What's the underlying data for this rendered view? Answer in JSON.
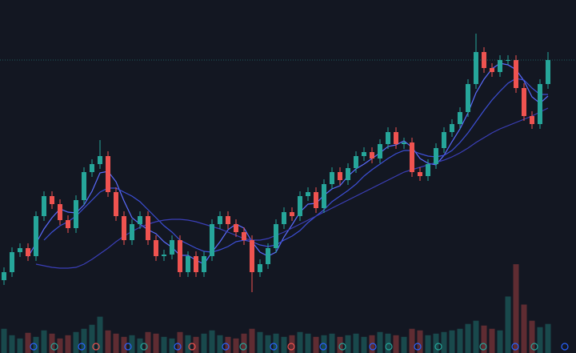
{
  "chart_data": {
    "type": "candlestick",
    "categories": [
      null,
      null,
      null,
      null,
      null,
      null,
      null,
      null,
      null,
      null,
      null,
      null,
      null,
      null,
      null,
      null,
      null,
      null,
      null,
      null,
      null,
      null,
      null,
      null,
      null,
      null,
      null,
      null,
      null,
      null,
      null,
      null,
      null,
      null,
      null,
      null,
      null,
      null,
      null,
      null,
      null,
      null,
      null,
      null,
      null,
      null,
      null,
      null,
      null,
      null,
      null,
      null,
      null,
      null,
      null,
      null,
      null,
      null,
      null,
      null,
      null,
      null,
      null,
      null,
      null,
      null,
      null,
      null,
      null
    ],
    "open": [
      60,
      70,
      95,
      100,
      90,
      140,
      165,
      155,
      135,
      125,
      160,
      195,
      205,
      215,
      170,
      140,
      110,
      130,
      140,
      110,
      90,
      92,
      110,
      70,
      90,
      70,
      90,
      130,
      140,
      130,
      120,
      110,
      70,
      80,
      100,
      130,
      145,
      140,
      165,
      170,
      150,
      180,
      195,
      185,
      200,
      215,
      220,
      212,
      230,
      245,
      230,
      232,
      195,
      190,
      205,
      225,
      245,
      255,
      270,
      305,
      345,
      325,
      320,
      335,
      335,
      300,
      265,
      255,
      305
    ],
    "high": [
      76,
      101,
      106,
      106,
      146,
      171,
      171,
      161,
      141,
      166,
      201,
      211,
      235,
      221,
      176,
      146,
      136,
      146,
      146,
      116,
      98,
      116,
      116,
      96,
      96,
      96,
      136,
      146,
      146,
      136,
      126,
      116,
      86,
      106,
      136,
      151,
      151,
      171,
      176,
      176,
      186,
      201,
      201,
      206,
      221,
      226,
      226,
      236,
      251,
      251,
      238,
      238,
      201,
      211,
      231,
      251,
      261,
      276,
      311,
      368,
      351,
      331,
      341,
      341,
      341,
      306,
      271,
      311,
      345
    ],
    "low": [
      54,
      64,
      89,
      84,
      84,
      134,
      149,
      129,
      119,
      119,
      154,
      189,
      199,
      164,
      134,
      104,
      104,
      124,
      104,
      84,
      84,
      86,
      64,
      64,
      64,
      64,
      84,
      124,
      124,
      114,
      104,
      45,
      64,
      74,
      94,
      124,
      134,
      134,
      159,
      144,
      144,
      174,
      179,
      179,
      194,
      209,
      206,
      206,
      224,
      224,
      224,
      189,
      184,
      184,
      199,
      219,
      239,
      249,
      264,
      299,
      319,
      314,
      314,
      329,
      294,
      259,
      249,
      249,
      299
    ],
    "close": [
      70,
      95,
      100,
      90,
      140,
      165,
      155,
      135,
      125,
      160,
      195,
      205,
      215,
      170,
      140,
      110,
      130,
      140,
      110,
      90,
      92,
      110,
      70,
      90,
      70,
      90,
      130,
      140,
      130,
      120,
      110,
      70,
      80,
      100,
      130,
      145,
      140,
      165,
      170,
      150,
      180,
      195,
      185,
      200,
      215,
      220,
      212,
      230,
      245,
      230,
      232,
      195,
      190,
      205,
      225,
      245,
      255,
      270,
      305,
      345,
      325,
      320,
      335,
      335,
      300,
      265,
      255,
      305,
      335
    ],
    "up_color": "#26a69a",
    "down_color": "#ef5350",
    "ylim": [
      0,
      410
    ],
    "volume": [
      30,
      22,
      18,
      25,
      20,
      28,
      24,
      18,
      22,
      26,
      30,
      35,
      45,
      28,
      24,
      20,
      22,
      18,
      26,
      24,
      20,
      18,
      26,
      22,
      20,
      24,
      28,
      22,
      20,
      18,
      24,
      30,
      26,
      22,
      24,
      20,
      22,
      26,
      24,
      20,
      22,
      24,
      20,
      22,
      24,
      20,
      22,
      26,
      24,
      22,
      20,
      30,
      28,
      22,
      24,
      26,
      28,
      30,
      36,
      40,
      34,
      30,
      28,
      70,
      110,
      60,
      40,
      32,
      36
    ],
    "y2lim": [
      0,
      120
    ],
    "series": [
      {
        "color": "#5b6cff",
        "values": [
          null,
          null,
          null,
          89,
          106,
          124,
          138,
          149,
          145,
          144,
          154,
          171,
          194,
          196,
          183,
          159,
          138,
          130,
          123,
          118,
          108,
          101,
          91,
          91,
          85,
          80,
          95,
          108,
          123,
          130,
          125,
          108,
          95,
          90,
          95,
          114,
          129,
          145,
          155,
          156,
          166,
          174,
          178,
          190,
          199,
          205,
          212,
          219,
          227,
          229,
          234,
          226,
          212,
          206,
          204,
          216,
          233,
          249,
          269,
          294,
          311,
          324,
          331,
          329,
          323,
          309,
          289,
          281,
          290
        ]
      },
      {
        "color": "#3d4fd6",
        "values": [
          null,
          null,
          null,
          null,
          null,
          110,
          120,
          128,
          133,
          140,
          150,
          160,
          170,
          175,
          175,
          170,
          165,
          158,
          148,
          138,
          128,
          120,
          110,
          105,
          100,
          96,
          95,
          98,
          102,
          108,
          110,
          108,
          104,
          102,
          104,
          110,
          115,
          122,
          132,
          140,
          148,
          158,
          165,
          172,
          180,
          190,
          198,
          205,
          212,
          218,
          222,
          222,
          218,
          215,
          214,
          216,
          222,
          232,
          244,
          258,
          272,
          285,
          296,
          306,
          312,
          310,
          300,
          292,
          292
        ]
      },
      {
        "color": "#3b3fb8",
        "values": [
          null,
          null,
          null,
          null,
          80,
          78,
          76,
          75,
          75,
          76,
          80,
          86,
          93,
          100,
          108,
          115,
          121,
          126,
          130,
          133,
          135,
          136,
          136,
          135,
          133,
          130,
          127,
          124,
          120,
          116,
          112,
          110,
          110,
          112,
          116,
          120,
          125,
          130,
          135,
          140,
          145,
          150,
          155,
          160,
          165,
          170,
          175,
          180,
          185,
          190,
          195,
          198,
          201,
          204,
          207,
          210,
          214,
          219,
          225,
          232,
          238,
          244,
          249,
          253,
          257,
          261,
          265,
          270,
          275
        ]
      }
    ]
  }
}
